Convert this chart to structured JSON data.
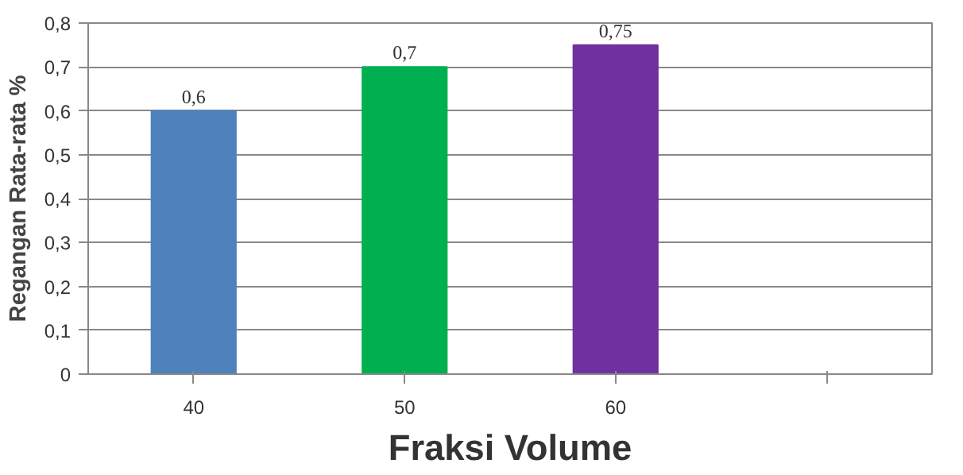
{
  "chart_data": {
    "type": "bar",
    "xlabel": "Fraksi Volume",
    "ylabel": "Regangan Rata-rata %",
    "categories": [
      "40",
      "50",
      "60",
      null
    ],
    "values": [
      0.6,
      0.7,
      0.75,
      null
    ],
    "colors": [
      "#4f81bd",
      "#00b050",
      "#7030a0",
      "#7f7f7f"
    ],
    "value_labels": [
      "0,6",
      "0,7",
      "0,75",
      null
    ],
    "ylim": [
      0,
      0.8
    ],
    "yticks": [
      {
        "value": 0,
        "label": "0"
      },
      {
        "value": 0.1,
        "label": "0,1"
      },
      {
        "value": 0.2,
        "label": "0,2"
      },
      {
        "value": 0.3,
        "label": "0,3"
      },
      {
        "value": 0.4,
        "label": "0,4"
      },
      {
        "value": 0.5,
        "label": "0,5"
      },
      {
        "value": 0.6,
        "label": "0,6"
      },
      {
        "value": 0.7,
        "label": "0,7"
      },
      {
        "value": 0.8,
        "label": "0,8"
      }
    ],
    "grid": "y"
  }
}
